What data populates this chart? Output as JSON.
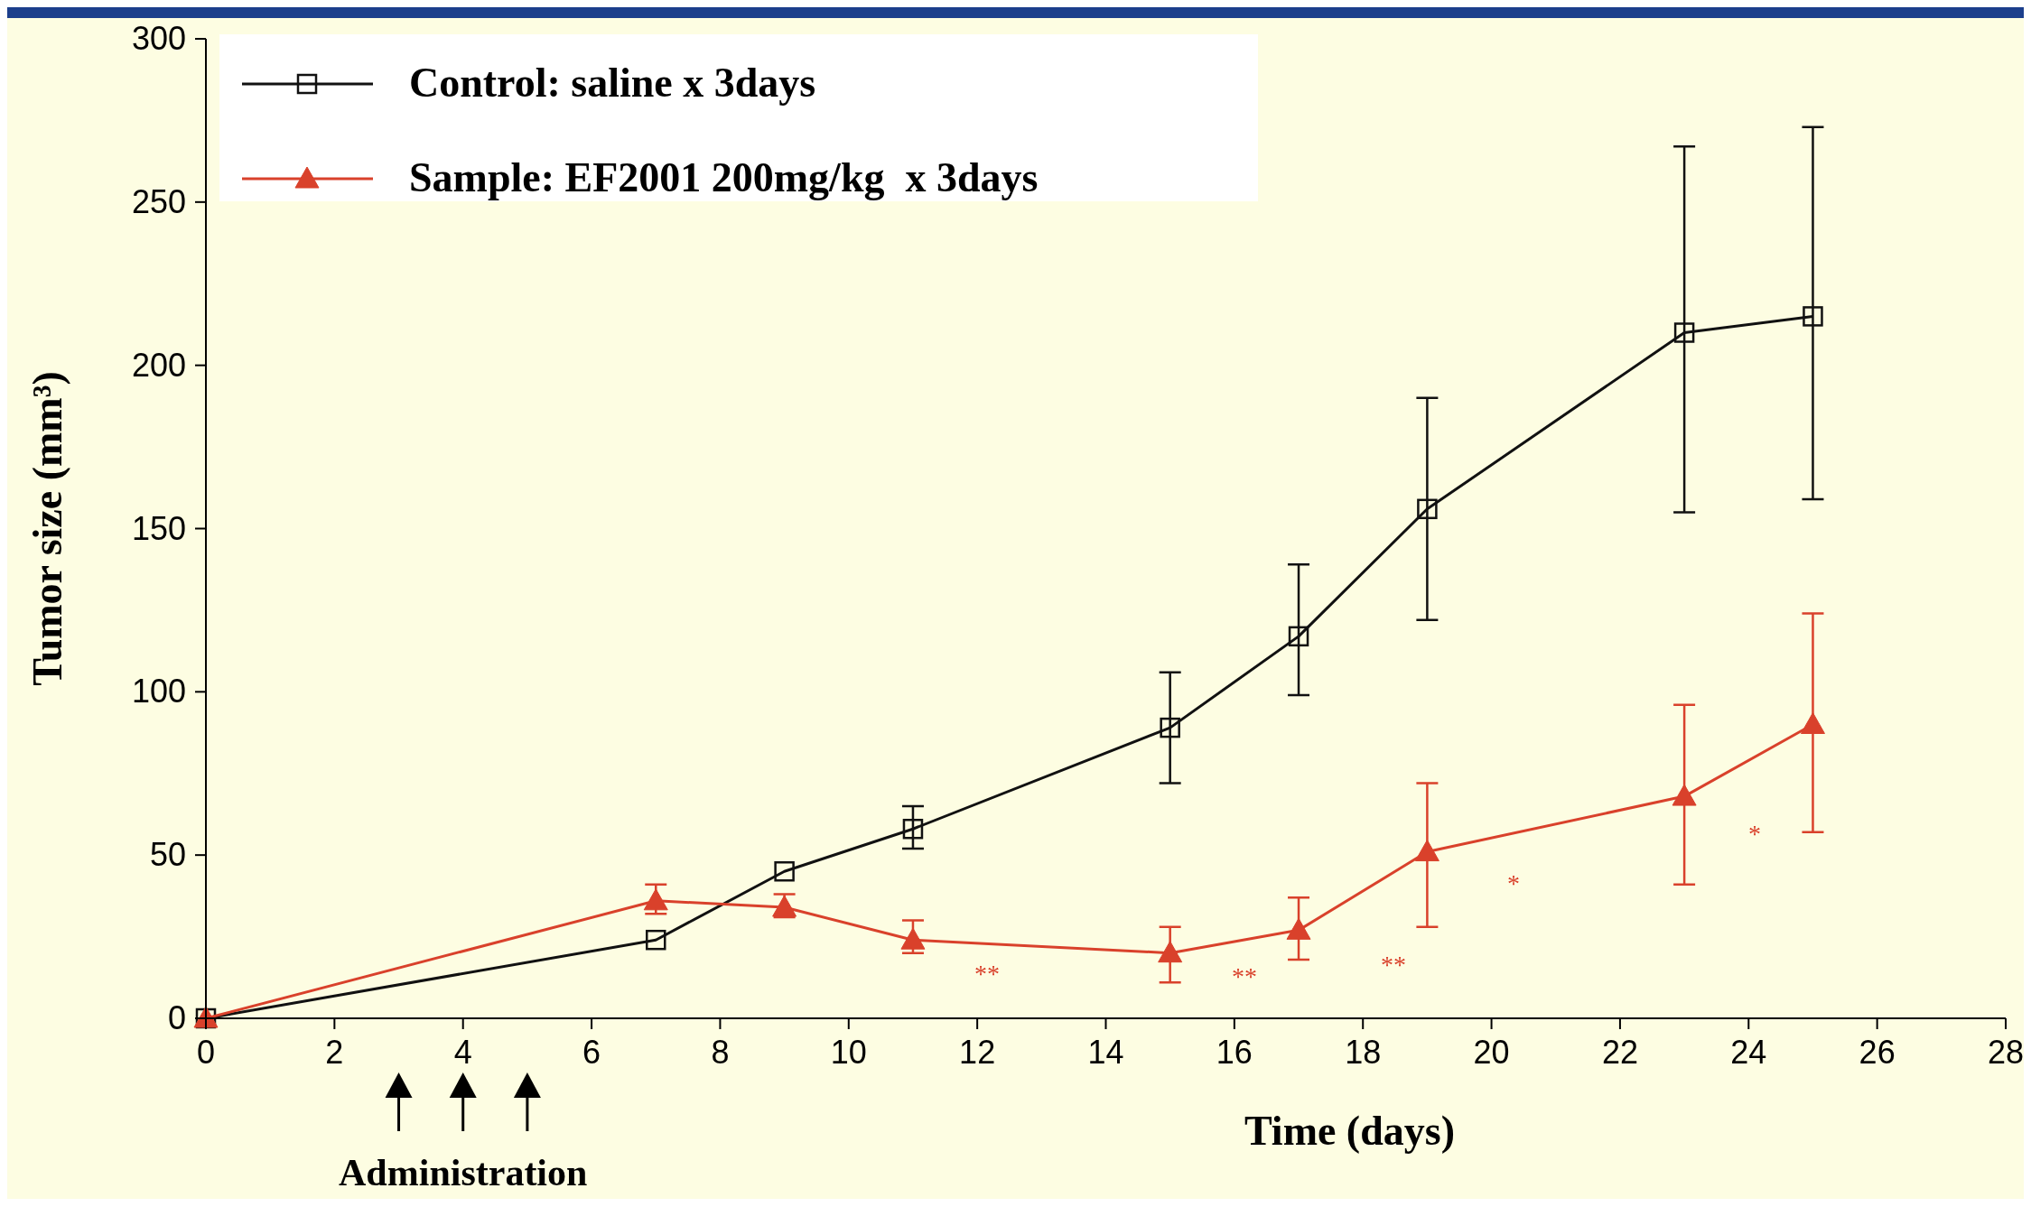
{
  "chart_data": {
    "type": "line",
    "xlabel": "Time (days)",
    "ylabel": "Tumor size (mm³)",
    "x": [
      0,
      7,
      9,
      11,
      15,
      17,
      19,
      23,
      25
    ],
    "xlim": [
      0,
      28
    ],
    "xticks": [
      0,
      2,
      4,
      6,
      8,
      10,
      12,
      14,
      16,
      18,
      20,
      22,
      24,
      26,
      28
    ],
    "ylim": [
      0,
      300
    ],
    "yticks": [
      0,
      50,
      100,
      150,
      200,
      250,
      300
    ],
    "grid": false,
    "legend": "top left",
    "series": [
      {
        "name": "Control: saline x 3days",
        "color": "#111111",
        "marker": "square",
        "values": [
          0,
          24,
          45,
          58,
          89,
          117,
          156,
          210,
          215
        ],
        "errors": [
          null,
          null,
          null,
          [
            52,
            65
          ],
          [
            72,
            106
          ],
          [
            99,
            139
          ],
          [
            122,
            190
          ],
          [
            155,
            267
          ],
          [
            159,
            273
          ]
        ]
      },
      {
        "name": "Sample: EF2001 200mg/kg  x 3days",
        "color": "#d9412b",
        "marker": "triangle",
        "values": [
          0,
          36,
          34,
          24,
          20,
          27,
          51,
          68,
          90
        ],
        "errors": [
          null,
          [
            32,
            41
          ],
          [
            31,
            38
          ],
          [
            20,
            30
          ],
          [
            11,
            28
          ],
          [
            18,
            37
          ],
          [
            28,
            72
          ],
          [
            41,
            96
          ],
          [
            57,
            124
          ]
        ]
      }
    ],
    "annotations": [
      "**",
      "**",
      "**",
      "*",
      "*",
      "Administration"
    ]
  }
}
